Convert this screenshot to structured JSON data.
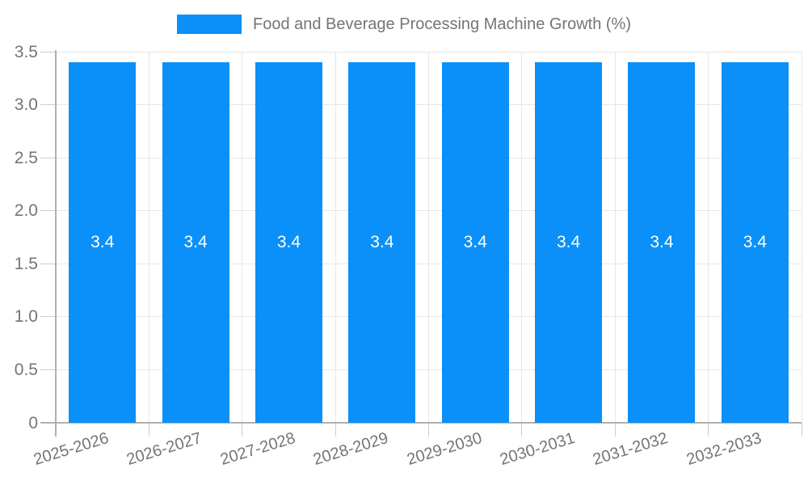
{
  "legend": {
    "label": "Food and Beverage Processing Machine Growth (%)"
  },
  "chart_data": {
    "type": "bar",
    "title": "Food and Beverage Processing Machine Growth (%)",
    "categories": [
      "2025-2026",
      "2026-2027",
      "2027-2028",
      "2028-2029",
      "2029-2030",
      "2030-2031",
      "2031-2032",
      "2032-2033"
    ],
    "values": [
      3.4,
      3.4,
      3.4,
      3.4,
      3.4,
      3.4,
      3.4,
      3.4
    ],
    "bar_labels": [
      "3.4",
      "3.4",
      "3.4",
      "3.4",
      "3.4",
      "3.4",
      "3.4",
      "3.4"
    ],
    "xlabel": "",
    "ylabel": "",
    "ylim": [
      0,
      3.5
    ],
    "yticks": [
      0,
      0.5,
      1.0,
      1.5,
      2.0,
      2.5,
      3.0,
      3.5
    ],
    "ytick_labels": [
      "0",
      "0.5",
      "1.0",
      "1.5",
      "2.0",
      "2.5",
      "3.0",
      "3.5"
    ],
    "grid": true,
    "legend_position": "top-center"
  },
  "colors": {
    "bar": "#0a90f8",
    "grid": "#e6e6e6",
    "axis": "#b0b0b0",
    "tick": "#cccccc",
    "text": "#757575",
    "bar_label": "#ffffff",
    "background": "#ffffff"
  }
}
